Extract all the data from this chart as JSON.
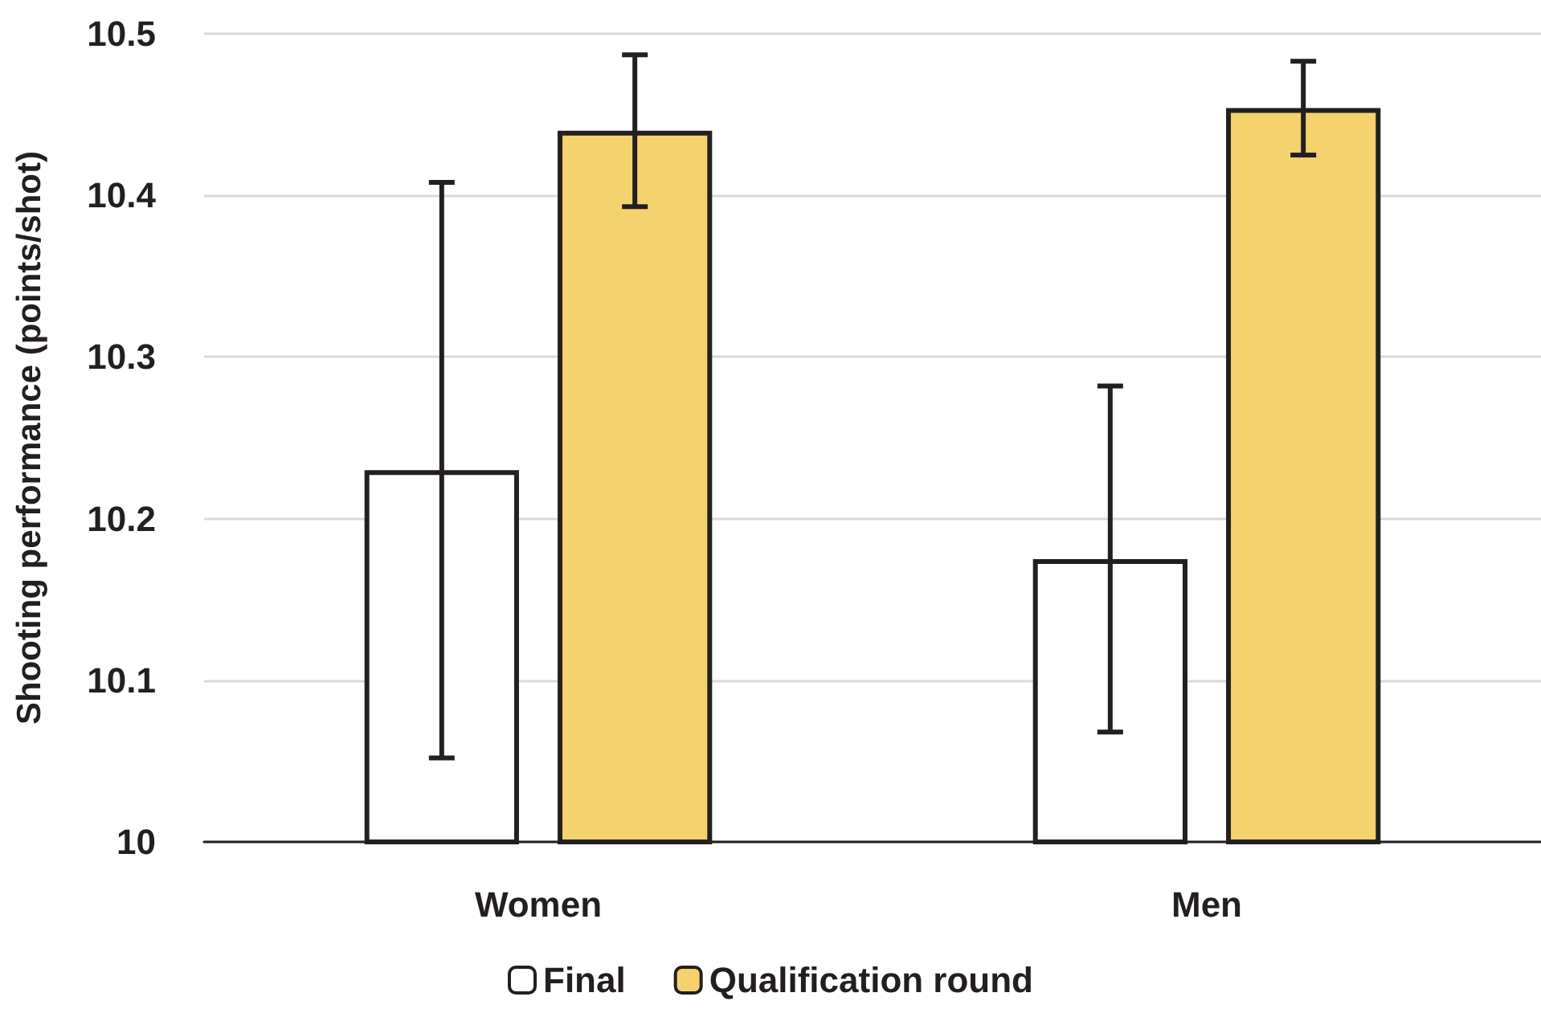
{
  "chart_data": {
    "type": "bar",
    "ylabel": "Shooting performance (points/shot)",
    "categories": [
      "Women",
      "Men"
    ],
    "series": [
      {
        "name": "Final",
        "color": "#ffffff",
        "values": [
          10.23,
          10.175
        ],
        "errors": [
          0.178,
          0.107
        ]
      },
      {
        "name": "Qualification round",
        "color": "#f4d36e",
        "values": [
          10.44,
          10.454
        ],
        "errors": [
          0.047,
          0.029
        ]
      }
    ],
    "ylim": [
      10,
      10.5
    ],
    "yticks": [
      10,
      10.1,
      10.2,
      10.3,
      10.4,
      10.5
    ],
    "grid": "y",
    "legend": "bottom"
  }
}
